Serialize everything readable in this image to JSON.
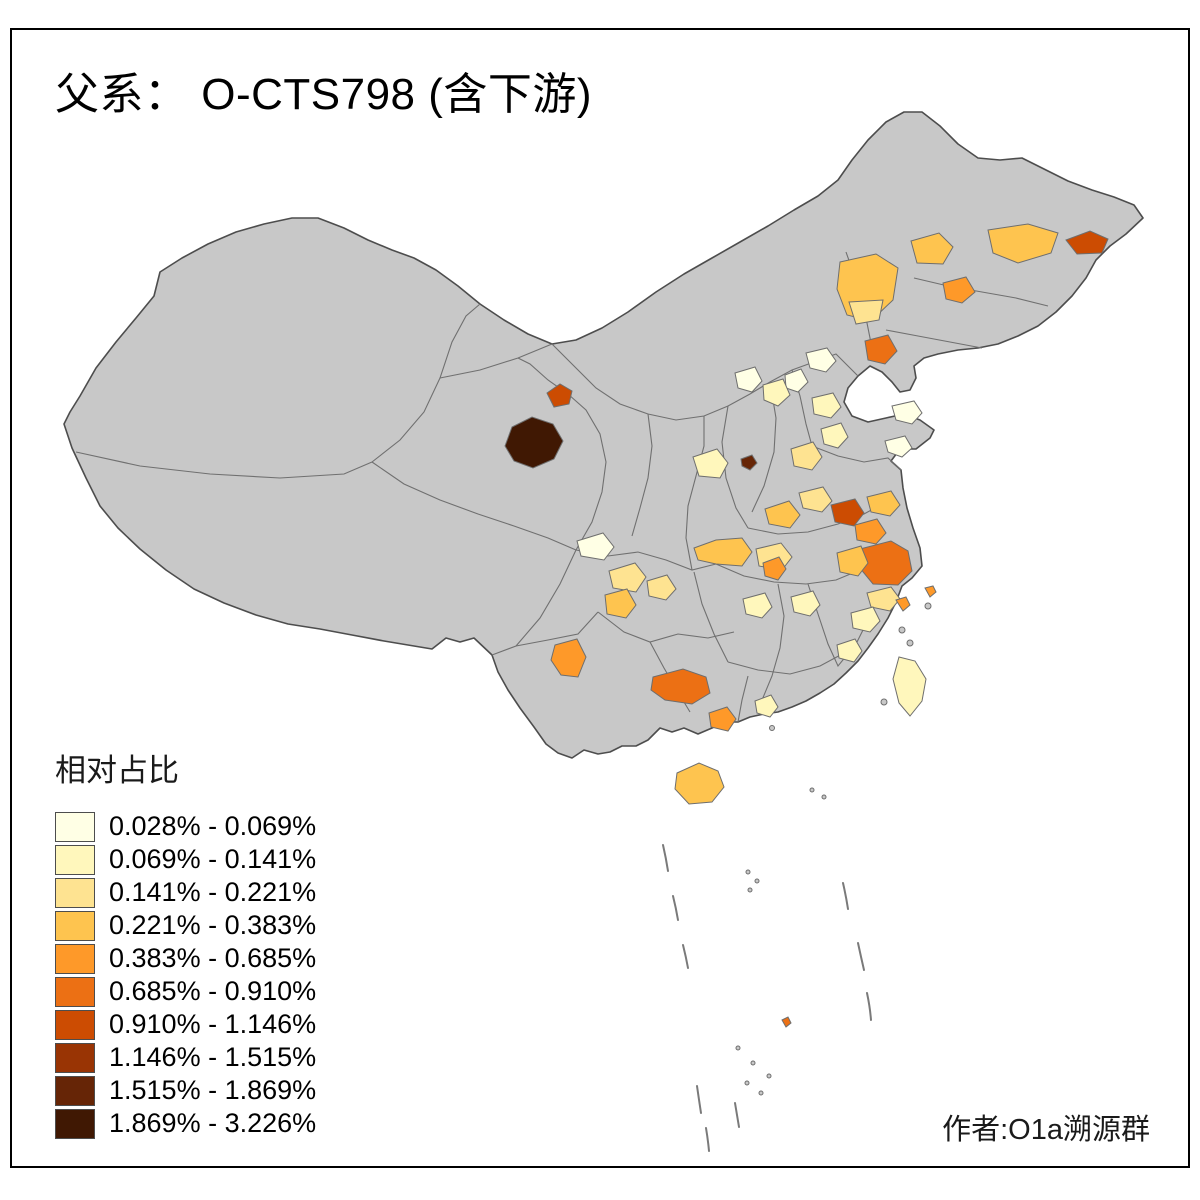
{
  "title": "父系： O-CTS798 (含下游)",
  "credit": "作者:O1a溯源群",
  "legend": {
    "title": "相对占比",
    "classes": [
      {
        "label": "0.028% - 0.069%",
        "color": "#FFFFE5"
      },
      {
        "label": "0.069% - 0.141%",
        "color": "#FFF7BC"
      },
      {
        "label": "0.141% - 0.221%",
        "color": "#FEE391"
      },
      {
        "label": "0.221% - 0.383%",
        "color": "#FEC44F"
      },
      {
        "label": "0.383% - 0.685%",
        "color": "#FE9929"
      },
      {
        "label": "0.685% - 0.910%",
        "color": "#EC7014"
      },
      {
        "label": "0.910% - 1.146%",
        "color": "#CC4C02"
      },
      {
        "label": "1.146% - 1.515%",
        "color": "#993404"
      },
      {
        "label": "1.515% - 1.869%",
        "color": "#662506"
      },
      {
        "label": "1.869% - 3.226%",
        "color": "#401803"
      }
    ]
  },
  "map": {
    "base_fill": "#C8C8C8",
    "outline_color": "#4D4D4D",
    "regions": [
      {
        "name": "qinghai-haixi",
        "class": 9
      },
      {
        "name": "gansu-jiuquan",
        "class": 6
      },
      {
        "name": "heilongjiang-east",
        "class": 6
      },
      {
        "name": "heilongjiang-central",
        "class": 3
      },
      {
        "name": "heilongjiang-west",
        "class": 3
      },
      {
        "name": "jilin-central",
        "class": 4
      },
      {
        "name": "neimenggu-east",
        "class": 3
      },
      {
        "name": "neimenggu-east-south",
        "class": 2
      },
      {
        "name": "liaoning-shenyang",
        "class": 5
      },
      {
        "name": "hebei-chengde",
        "class": 0
      },
      {
        "name": "beijing",
        "class": 0
      },
      {
        "name": "hebei-baoding",
        "class": 1
      },
      {
        "name": "shanxi-north",
        "class": 0
      },
      {
        "name": "hebei-tangshan",
        "class": 1
      },
      {
        "name": "hebei-shijiazhuang",
        "class": 2
      },
      {
        "name": "shandong-west",
        "class": 1
      },
      {
        "name": "shandong-peninsula",
        "class": 0
      },
      {
        "name": "shandong-south",
        "class": 0
      },
      {
        "name": "shanxi-dark-dot",
        "class": 8
      },
      {
        "name": "shaanxi-north",
        "class": 1
      },
      {
        "name": "henan-central",
        "class": 3
      },
      {
        "name": "henan-east",
        "class": 2
      },
      {
        "name": "anhui-north",
        "class": 6
      },
      {
        "name": "anhui-bengbu",
        "class": 4
      },
      {
        "name": "jiangsu-north",
        "class": 3
      },
      {
        "name": "jiangsu-south",
        "class": 5
      },
      {
        "name": "anhui-hefei",
        "class": 3
      },
      {
        "name": "zhejiang-north",
        "class": 2
      },
      {
        "name": "zhejiang-south",
        "class": 1
      },
      {
        "name": "hubei-west",
        "class": 3
      },
      {
        "name": "hubei-east",
        "class": 2
      },
      {
        "name": "hubei-spot",
        "class": 4
      },
      {
        "name": "hunan-north",
        "class": 1
      },
      {
        "name": "jiangxi-north",
        "class": 1
      },
      {
        "name": "sichuan-aba",
        "class": 0
      },
      {
        "name": "sichuan-chengdu",
        "class": 2
      },
      {
        "name": "sichuan-south",
        "class": 3
      },
      {
        "name": "chongqing",
        "class": 2
      },
      {
        "name": "yunnan-central",
        "class": 4
      },
      {
        "name": "guizhou-guangxi",
        "class": 5
      },
      {
        "name": "guangxi-south",
        "class": 4
      },
      {
        "name": "guangdong-west",
        "class": 1
      },
      {
        "name": "fujian-coast",
        "class": 1
      },
      {
        "name": "hainan",
        "class": 3
      },
      {
        "name": "taiwan",
        "class": 1
      },
      {
        "name": "zhoushan-dot",
        "class": 4
      },
      {
        "name": "ningbo-dot",
        "class": 4
      },
      {
        "name": "scs-islet",
        "class": 5
      }
    ]
  }
}
